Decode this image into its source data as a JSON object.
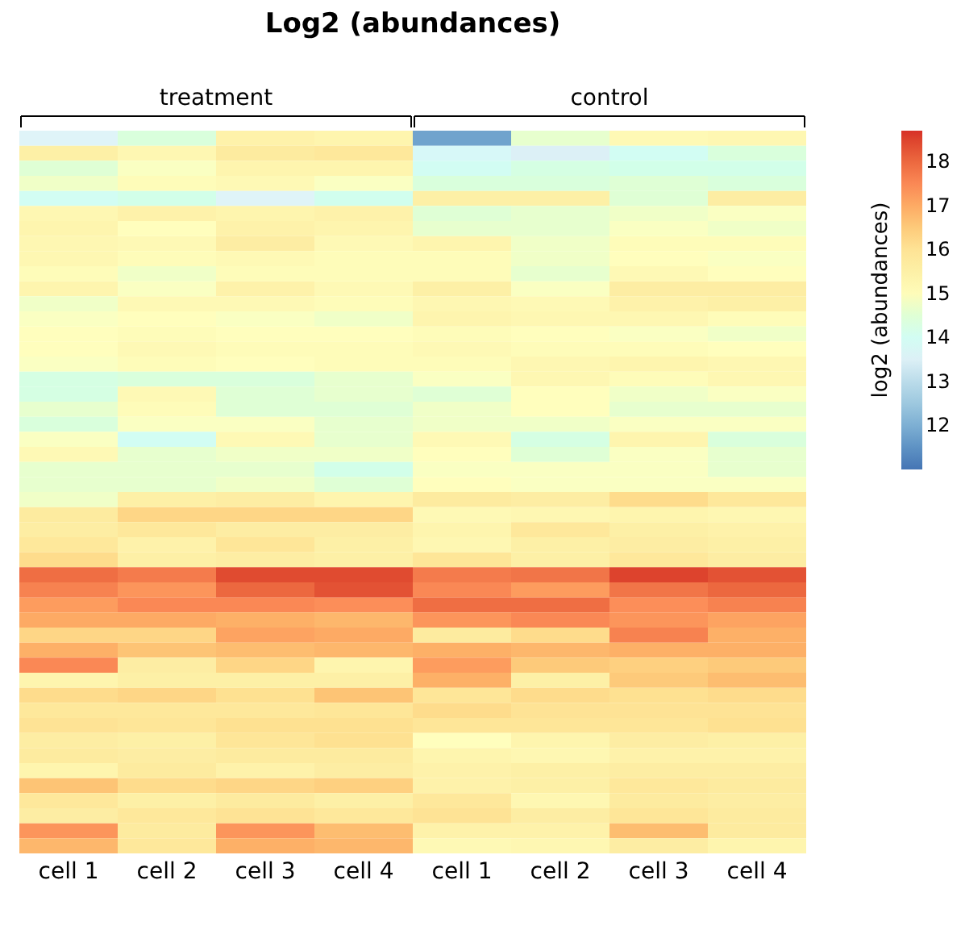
{
  "chart_data": {
    "type": "heatmap",
    "title": "Log2 (abundances)",
    "clabel": "log2 (abundances)",
    "annotations": [
      "treatment",
      "control"
    ],
    "categories": [
      "cell 1",
      "cell 2",
      "cell 3",
      "cell 4",
      "cell 1",
      "cell 2",
      "cell 3",
      "cell 4"
    ],
    "y_categories": [
      null,
      null,
      null,
      null,
      null,
      null,
      null,
      null,
      null,
      null,
      null,
      null,
      null,
      null,
      null,
      null,
      null,
      null,
      null,
      null,
      null,
      null,
      null,
      null,
      null,
      null,
      null,
      null,
      null,
      null,
      null,
      null,
      null,
      null,
      null,
      null,
      null,
      null,
      null,
      null,
      null,
      null,
      null,
      null,
      null,
      null,
      null,
      null
    ],
    "tick_labels": "x",
    "clim": [
      11,
      18.7
    ],
    "cticks": [
      12,
      13,
      14,
      15,
      16,
      17,
      18
    ],
    "cells": [
      [
        13.6,
        14.4,
        15.4,
        15.3,
        11.8,
        14.6,
        15.1,
        15.2
      ],
      [
        15.5,
        15.2,
        15.7,
        15.8,
        13.8,
        13.5,
        14.0,
        14.4
      ],
      [
        14.5,
        14.8,
        15.3,
        15.3,
        14.0,
        14.3,
        14.2,
        14.2
      ],
      [
        14.7,
        15.0,
        15.1,
        14.8,
        14.4,
        14.4,
        14.5,
        14.4
      ],
      [
        14.0,
        14.2,
        13.6,
        14.1,
        15.5,
        15.5,
        14.5,
        15.6
      ],
      [
        15.2,
        15.4,
        15.3,
        15.4,
        14.5,
        14.6,
        14.7,
        14.8
      ],
      [
        15.3,
        14.9,
        15.4,
        15.3,
        14.6,
        14.6,
        14.8,
        14.7
      ],
      [
        15.2,
        15.1,
        15.6,
        15.1,
        15.3,
        14.7,
        15.0,
        15.0
      ],
      [
        15.2,
        15.0,
        15.1,
        15.0,
        15.0,
        14.7,
        14.9,
        14.8
      ],
      [
        15.0,
        14.7,
        15.0,
        15.0,
        15.0,
        14.6,
        15.1,
        14.9
      ],
      [
        15.3,
        14.8,
        15.4,
        15.1,
        15.5,
        14.8,
        15.6,
        15.6
      ],
      [
        14.7,
        15.1,
        15.1,
        15.0,
        15.2,
        15.1,
        15.4,
        15.5
      ],
      [
        14.8,
        14.9,
        14.8,
        14.7,
        15.3,
        15.2,
        15.2,
        15.0
      ],
      [
        14.9,
        15.0,
        14.9,
        14.9,
        15.0,
        14.9,
        14.8,
        14.7
      ],
      [
        14.9,
        15.1,
        15.0,
        15.0,
        15.1,
        15.0,
        15.0,
        14.9
      ],
      [
        14.8,
        15.0,
        14.9,
        15.0,
        15.0,
        15.2,
        15.3,
        15.2
      ],
      [
        14.3,
        14.4,
        14.4,
        14.6,
        14.8,
        15.2,
        15.0,
        15.2
      ],
      [
        14.3,
        15.1,
        14.5,
        14.6,
        14.5,
        14.9,
        14.7,
        14.8
      ],
      [
        14.6,
        15.0,
        14.5,
        14.5,
        14.7,
        14.9,
        14.6,
        14.6
      ],
      [
        14.4,
        14.8,
        14.8,
        14.6,
        14.7,
        14.7,
        14.8,
        14.8
      ],
      [
        14.8,
        14.0,
        15.1,
        14.6,
        15.1,
        14.3,
        15.3,
        14.4
      ],
      [
        15.1,
        14.6,
        14.7,
        14.7,
        14.9,
        14.5,
        14.8,
        14.6
      ],
      [
        14.6,
        14.6,
        14.6,
        14.2,
        14.8,
        14.8,
        14.8,
        14.6
      ],
      [
        14.6,
        14.6,
        14.7,
        14.5,
        14.9,
        14.8,
        14.8,
        14.8
      ],
      [
        14.7,
        15.5,
        15.6,
        15.3,
        15.7,
        15.6,
        16.2,
        15.8
      ],
      [
        15.7,
        16.3,
        16.3,
        16.3,
        15.1,
        15.2,
        15.3,
        15.2
      ],
      [
        15.6,
        15.8,
        15.6,
        15.6,
        15.3,
        15.8,
        15.5,
        15.4
      ],
      [
        15.8,
        15.4,
        15.9,
        15.5,
        15.2,
        15.5,
        15.6,
        15.5
      ],
      [
        16.2,
        15.5,
        15.6,
        15.5,
        15.9,
        15.5,
        15.8,
        15.6
      ],
      [
        17.9,
        17.7,
        18.4,
        18.4,
        17.7,
        17.8,
        18.5,
        18.3
      ],
      [
        17.6,
        17.3,
        18.0,
        18.3,
        17.5,
        17.2,
        17.8,
        18.0
      ],
      [
        17.2,
        17.5,
        17.5,
        17.4,
        17.9,
        17.9,
        17.4,
        17.6
      ],
      [
        17.0,
        17.0,
        16.9,
        16.8,
        17.3,
        17.5,
        17.3,
        17.1
      ],
      [
        16.3,
        16.3,
        17.1,
        17.0,
        15.7,
        16.2,
        17.6,
        16.9
      ],
      [
        16.9,
        16.6,
        16.7,
        16.8,
        16.9,
        16.8,
        16.9,
        16.9
      ],
      [
        17.5,
        15.6,
        16.3,
        15.3,
        17.2,
        16.5,
        16.4,
        16.5
      ],
      [
        15.3,
        15.5,
        15.5,
        15.5,
        16.9,
        15.5,
        16.5,
        16.7
      ],
      [
        16.2,
        16.3,
        16.1,
        16.6,
        15.9,
        16.2,
        16.1,
        16.2
      ],
      [
        15.8,
        15.8,
        15.8,
        15.9,
        16.2,
        16.0,
        16.0,
        16.0
      ],
      [
        16.0,
        15.9,
        16.1,
        16.1,
        15.9,
        15.9,
        15.9,
        16.1
      ],
      [
        15.6,
        15.5,
        15.9,
        16.1,
        14.9,
        15.3,
        15.6,
        15.5
      ],
      [
        15.7,
        15.6,
        15.7,
        15.7,
        15.3,
        15.2,
        15.4,
        15.4
      ],
      [
        15.3,
        15.7,
        15.4,
        15.6,
        15.4,
        15.5,
        15.6,
        15.6
      ],
      [
        16.6,
        16.2,
        16.3,
        16.4,
        15.4,
        15.5,
        15.8,
        15.7
      ],
      [
        15.8,
        15.5,
        15.7,
        15.5,
        15.8,
        15.2,
        15.7,
        15.6
      ],
      [
        15.6,
        15.8,
        16.0,
        15.8,
        16.0,
        15.6,
        15.9,
        15.7
      ],
      [
        17.3,
        15.7,
        17.3,
        16.7,
        15.4,
        15.4,
        16.7,
        15.7
      ],
      [
        16.8,
        15.8,
        16.9,
        16.8,
        15.1,
        15.2,
        15.6,
        15.3
      ]
    ]
  }
}
